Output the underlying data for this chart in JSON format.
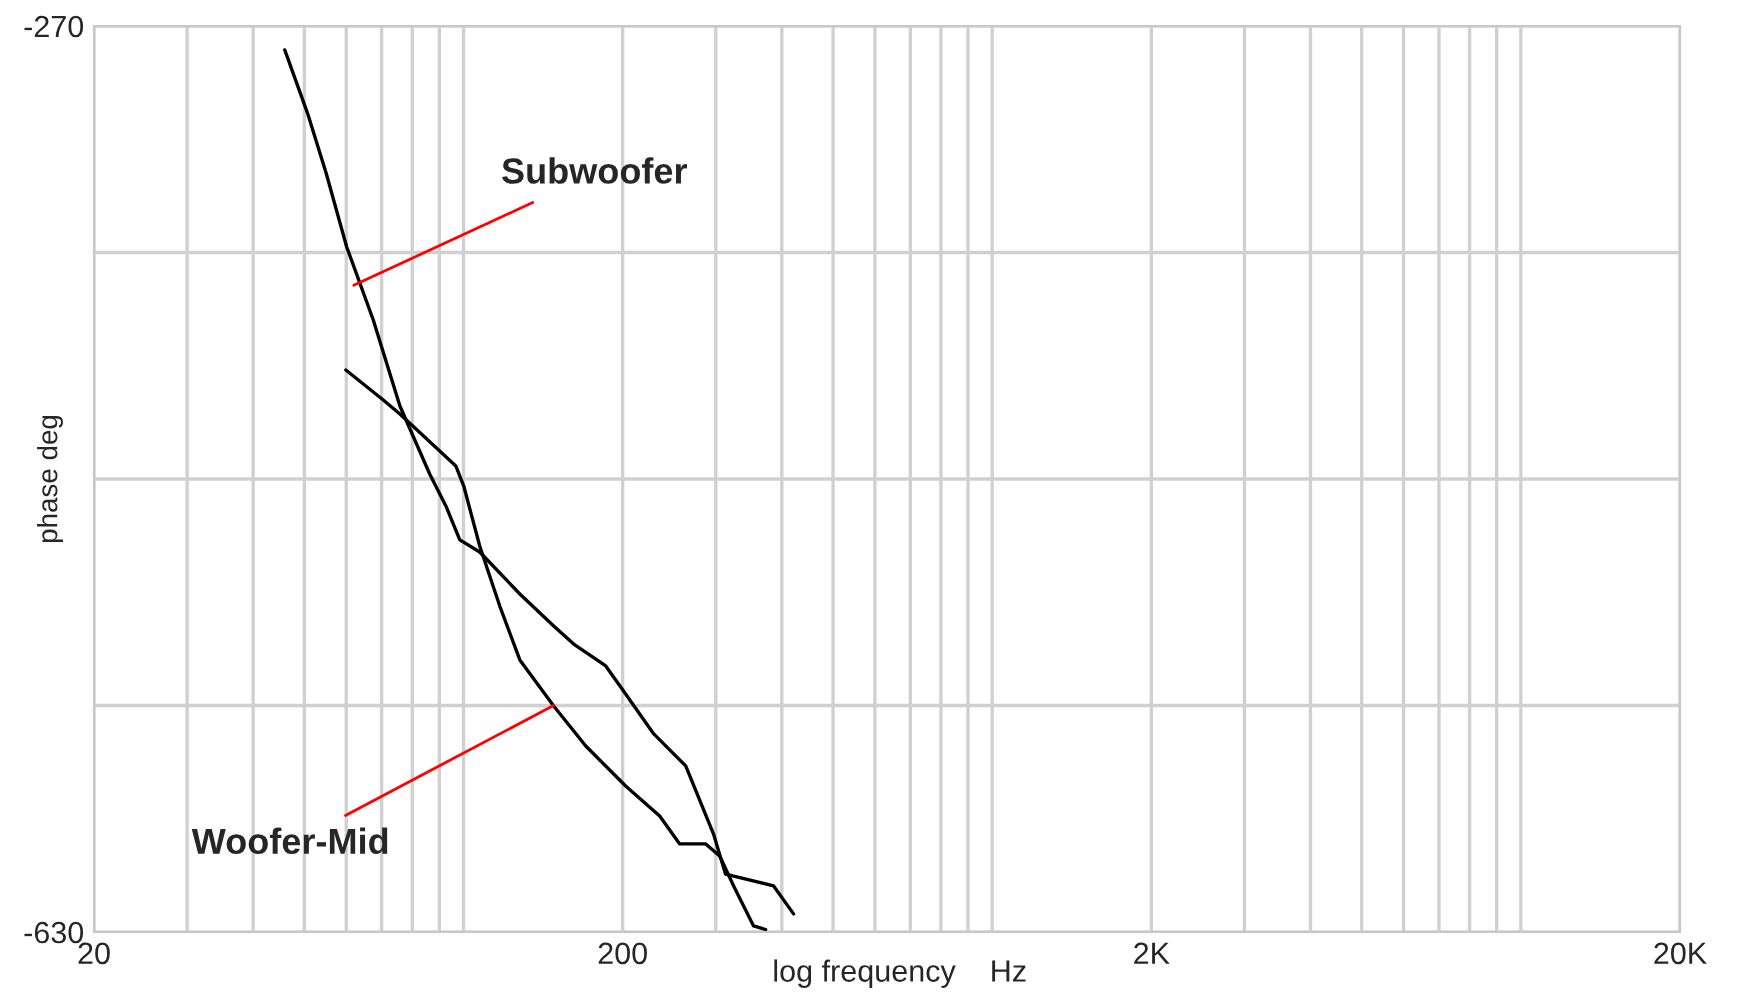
{
  "chart_data": {
    "type": "line",
    "xlabel": "log frequency    Hz",
    "ylabel": "phase deg",
    "log": "x",
    "grid": true,
    "line_style": "solid",
    "marker": "none",
    "xlim": [
      20,
      20000
    ],
    "ylim": [
      -630,
      -270
    ],
    "xticks": [
      20,
      {
        "value": 30,
        "label": null
      },
      {
        "value": 40,
        "label": null
      },
      {
        "value": 50,
        "label": null
      },
      {
        "value": 60,
        "label": null
      },
      {
        "value": 70,
        "label": null
      },
      {
        "value": 80,
        "label": null
      },
      {
        "value": 90,
        "label": null
      },
      {
        "value": 100,
        "label": null
      },
      200,
      {
        "value": 300,
        "label": null
      },
      {
        "value": 400,
        "label": null
      },
      {
        "value": 500,
        "label": null
      },
      {
        "value": 600,
        "label": null
      },
      {
        "value": 700,
        "label": null
      },
      {
        "value": 800,
        "label": null
      },
      {
        "value": 900,
        "label": null
      },
      {
        "value": 1000,
        "label": null
      },
      {
        "value": 2000,
        "label": "2K"
      },
      {
        "value": 3000,
        "label": null
      },
      {
        "value": 4000,
        "label": null
      },
      {
        "value": 5000,
        "label": null
      },
      {
        "value": 6000,
        "label": null
      },
      {
        "value": 7000,
        "label": null
      },
      {
        "value": 8000,
        "label": null
      },
      {
        "value": 9000,
        "label": null
      },
      {
        "value": 10000,
        "label": null
      },
      {
        "value": 20000,
        "label": "20K"
      }
    ],
    "yticks": [
      -630,
      {
        "value": -540,
        "label": null
      },
      {
        "value": -450,
        "label": null
      },
      {
        "value": -360,
        "label": null
      },
      -270
    ],
    "series": [
      {
        "color": "#000000",
        "x": [
          45.9,
          50.7,
          55.0,
          60.1,
          67.5,
          75.8,
          86.3,
          92.6,
          98.4,
          107.3,
          127.8,
          148.1,
          161.6,
          185.8,
          202.6,
          229,
          263.2,
          297,
          313,
          386,
          421
        ],
        "values": [
          -279.5,
          -304.7,
          -328.6,
          -357.7,
          -386.8,
          -421,
          -448,
          -460.7,
          -474.2,
          -479,
          -495.7,
          -508.4,
          -515.6,
          -524.3,
          -535.4,
          -551.3,
          -564,
          -591,
          -607,
          -611.7,
          -622.8
        ]
      },
      {
        "color": "#000000",
        "x": [
          59.9,
          70.5,
          75.8,
          96.7,
          100.1,
          107.3,
          117.1,
          127.8,
          148.1,
          170.3,
          202.6,
          235,
          256.4,
          287.2,
          305.2,
          324.3,
          353.7,
          372.8
        ],
        "values": [
          -406.7,
          -418.6,
          -424.2,
          -444.8,
          -452.8,
          -476.6,
          -500.5,
          -521.9,
          -540.2,
          -556.1,
          -572,
          -583.9,
          -595,
          -595,
          -599.8,
          -611.7,
          -627.6,
          -629
        ]
      }
    ],
    "annotations": [
      {
        "text": "Subwoofer",
        "x": 62,
        "y": -373
      },
      {
        "text": "Woofer-Mid",
        "x": 148,
        "y": -540
      }
    ]
  }
}
